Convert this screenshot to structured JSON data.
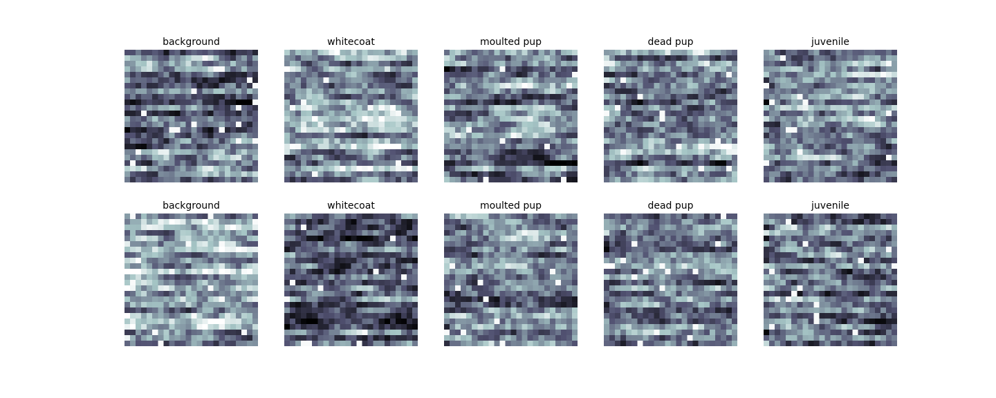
{
  "figure": {
    "colormap": "bone",
    "colors": {
      "dark": "#000000",
      "mid": "#54546e",
      "light": "#a8c0c0",
      "white": "#ffffff"
    },
    "panels": [
      {
        "title": "background"
      },
      {
        "title": "whitecoat"
      },
      {
        "title": "moulted pup"
      },
      {
        "title": "dead pup"
      },
      {
        "title": "juvenile"
      },
      {
        "title": "background"
      },
      {
        "title": "whitecoat"
      },
      {
        "title": "moulted pup"
      },
      {
        "title": "dead pup"
      },
      {
        "title": "juvenile"
      }
    ]
  }
}
